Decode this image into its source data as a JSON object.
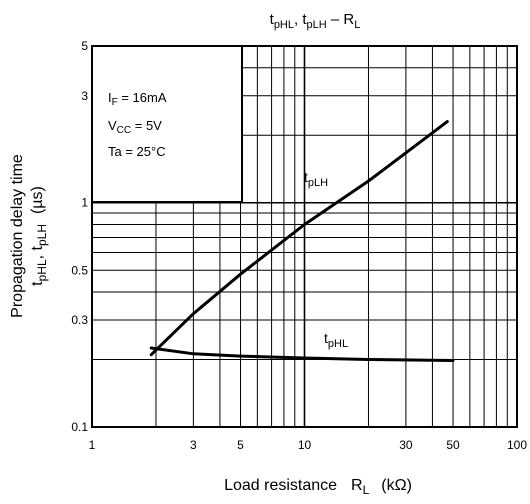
{
  "chart_data": {
    "type": "line",
    "title": {
      "t1": "t",
      "s1": "pHL",
      "sep": ", ",
      "t2": "t",
      "s2": "pLH",
      "tail": " – R",
      "s3": "L"
    },
    "xlabel": {
      "main": "Load resistance",
      "r": "R",
      "rsub": "L",
      "unit": "(kΩ)"
    },
    "ylabel": {
      "line1": "Propagation delay time",
      "a": "t",
      "asub": "pHL",
      "comma": ", ",
      "b": "t",
      "bsub": "pLH",
      "unit": "(µs)"
    },
    "x_scale": "log",
    "y_scale": "log",
    "xlim": [
      1,
      100
    ],
    "ylim": [
      0.1,
      5
    ],
    "grid": true,
    "x_ticks": [
      {
        "v": 1,
        "label": "1"
      },
      {
        "v": 3,
        "label": "3"
      },
      {
        "v": 5,
        "label": "5"
      },
      {
        "v": 10,
        "label": "10"
      },
      {
        "v": 30,
        "label": "30"
      },
      {
        "v": 50,
        "label": "50"
      },
      {
        "v": 100,
        "label": "100"
      }
    ],
    "y_ticks": [
      {
        "v": 0.1,
        "label": "0.1"
      },
      {
        "v": 0.3,
        "label": "0.3"
      },
      {
        "v": 0.5,
        "label": "0.5"
      },
      {
        "v": 1,
        "label": "1"
      },
      {
        "v": 3,
        "label": "3"
      },
      {
        "v": 5,
        "label": "5"
      }
    ],
    "conditions": {
      "if_main": "I",
      "if_sub": "F",
      "if_val": " = 16mA",
      "vcc_main": "V",
      "vcc_sub": "CC",
      "vcc_val": " = 5V",
      "ta": "Ta = 25°C"
    },
    "series": [
      {
        "name_main": "t",
        "name_sub": "pLH",
        "x": [
          1.9,
          3,
          5,
          10,
          20,
          47
        ],
        "y": [
          0.21,
          0.32,
          0.48,
          0.8,
          1.25,
          2.3
        ]
      },
      {
        "name_main": "t",
        "name_sub": "pHL",
        "x": [
          1.9,
          3,
          5,
          10,
          20,
          50
        ],
        "y": [
          0.225,
          0.212,
          0.207,
          0.203,
          0.2,
          0.198
        ]
      }
    ]
  }
}
